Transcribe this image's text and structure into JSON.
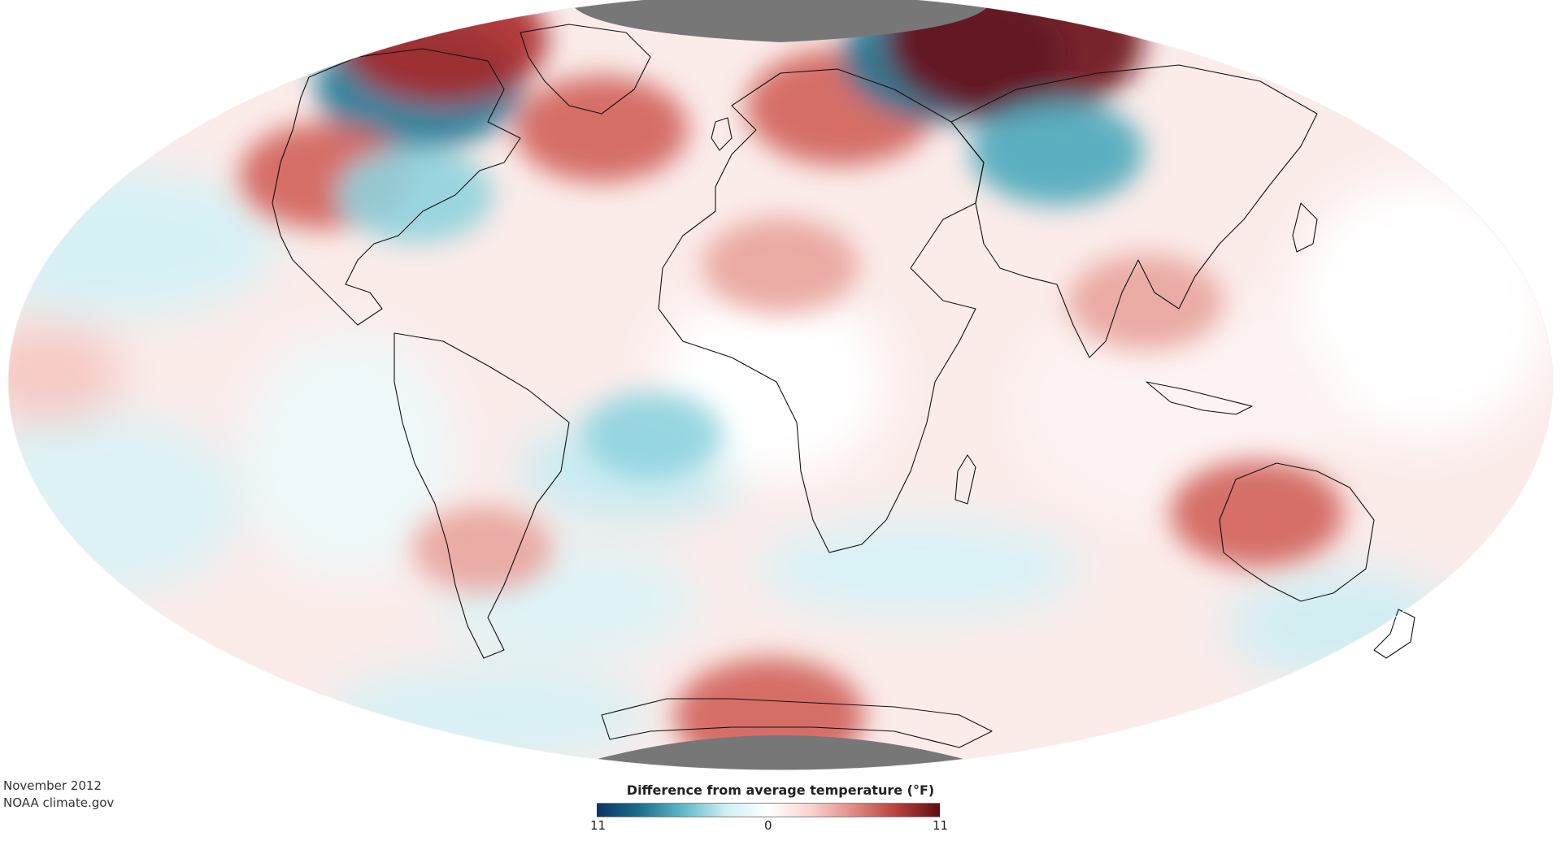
{
  "caption": {
    "date": "November 2012",
    "credit": "NOAA climate.gov"
  },
  "legend": {
    "title": "Difference from average temperature (°F)",
    "min_label": "11",
    "mid_label": "0",
    "max_label": "11",
    "colors": [
      "#0b3366",
      "#1b6f8a",
      "#5fb8c7",
      "#cdeff3",
      "#ffffff",
      "#f8d3cf",
      "#e08a82",
      "#b8403a",
      "#5e0d12"
    ]
  },
  "map": {
    "projection": "Mollweide",
    "no_data_color": "#777777",
    "anomalies": [
      {
        "region": "western-canada",
        "lon": -115,
        "lat": 60,
        "value": -6
      },
      {
        "region": "us-west",
        "lon": -110,
        "lat": 40,
        "value": 4
      },
      {
        "region": "us-east",
        "lon": -82,
        "lat": 36,
        "value": -3
      },
      {
        "region": "north-atlantic",
        "lon": -40,
        "lat": 50,
        "value": 4
      },
      {
        "region": "alaska-arctic",
        "lon": -150,
        "lat": 72,
        "value": 6
      },
      {
        "region": "europe-russia",
        "lon": 35,
        "lat": 55,
        "value": 5
      },
      {
        "region": "north-africa",
        "lon": 15,
        "lat": 22,
        "value": 3
      },
      {
        "region": "central-siberia",
        "lon": 90,
        "lat": 68,
        "value": -7
      },
      {
        "region": "eastern-siberia",
        "lon": 130,
        "lat": 72,
        "value": 9
      },
      {
        "region": "central-asia",
        "lon": 95,
        "lat": 45,
        "value": -4
      },
      {
        "region": "southeast-asia",
        "lon": 102,
        "lat": 15,
        "value": 3
      },
      {
        "region": "australia",
        "lon": 133,
        "lat": -25,
        "value": 4
      },
      {
        "region": "antarctic-peninsula",
        "lon": 10,
        "lat": -70,
        "value": 5
      },
      {
        "region": "south-atlantic",
        "lon": -15,
        "lat": -10,
        "value": -2
      },
      {
        "region": "southern-south-america",
        "lon": -62,
        "lat": -32,
        "value": 2
      }
    ]
  }
}
